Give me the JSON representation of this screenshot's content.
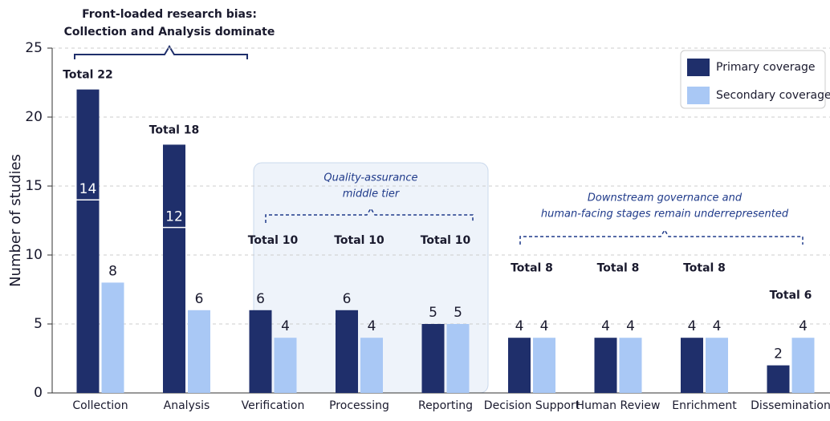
{
  "chart_data": {
    "type": "bar",
    "ylabel": "Number of studies",
    "categories": [
      "Collection",
      "Analysis",
      "Verification",
      "Processing",
      "Reporting",
      "Decision Support",
      "Human Review",
      "Enrichment",
      "Dissemination"
    ],
    "series": [
      {
        "name": "Primary coverage",
        "color": "#1f2f6b",
        "values": [
          14,
          12,
          6,
          6,
          5,
          4,
          4,
          4,
          2
        ]
      },
      {
        "name": "Secondary coverage",
        "color": "#a9c8f5",
        "values": [
          8,
          6,
          4,
          4,
          5,
          4,
          4,
          4,
          4
        ]
      }
    ],
    "stacked": [
      true,
      true,
      false,
      false,
      false,
      false,
      false,
      false,
      false
    ],
    "totals": {
      "values": [
        22,
        18,
        10,
        10,
        10,
        8,
        8,
        8,
        6
      ],
      "value_labels": [
        "Total 22",
        "Total 18",
        "Total 10",
        "Total 10",
        "Total 10",
        "Total 8",
        "Total 8",
        "Total 8",
        "Total 6"
      ]
    },
    "annotations": [
      {
        "lines": [
          "Front-loaded research bias:",
          "Collection and Analysis dominate"
        ]
      },
      {
        "lines": [
          "Quality-assurance",
          "middle tier"
        ]
      },
      {
        "lines": [
          "Downstream governance and",
          "human-facing stages remain underrepresented"
        ]
      }
    ],
    "ylim": [
      0,
      25
    ],
    "yticks": [
      0,
      5,
      10,
      15,
      20,
      25
    ],
    "grid": true,
    "legend": "top-right"
  }
}
